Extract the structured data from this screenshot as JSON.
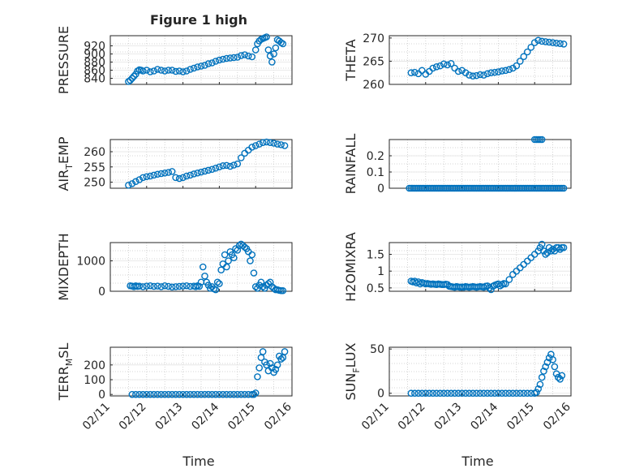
{
  "figure": {
    "marker_color": "#0072BD"
  },
  "chart_data": [
    {
      "type": "scatter",
      "title": "Figure 1 high",
      "ylabel": "PRESSURE",
      "xlim": [
        0,
        5
      ],
      "ylim": [
        825,
        945
      ],
      "yticks": [
        840,
        860,
        880,
        900,
        920
      ],
      "ytick_labels": [
        "840",
        "860",
        "880",
        "900",
        "920"
      ],
      "x": [
        0.5,
        0.55,
        0.6,
        0.65,
        0.7,
        0.75,
        0.8,
        0.85,
        0.9,
        1.0,
        1.1,
        1.2,
        1.3,
        1.4,
        1.5,
        1.6,
        1.7,
        1.8,
        1.9,
        2.0,
        2.1,
        2.2,
        2.3,
        2.4,
        2.5,
        2.6,
        2.7,
        2.8,
        2.9,
        3.0,
        3.1,
        3.2,
        3.3,
        3.4,
        3.5,
        3.6,
        3.7,
        3.8,
        3.9,
        4.0,
        4.05,
        4.1,
        4.15,
        4.2,
        4.25,
        4.3,
        4.35,
        4.4,
        4.45,
        4.5,
        4.55,
        4.6,
        4.65,
        4.7,
        4.75
      ],
      "y": [
        832,
        835,
        840,
        845,
        850,
        858,
        861,
        860,
        858,
        860,
        856,
        858,
        862,
        860,
        858,
        860,
        860,
        857,
        858,
        856,
        858,
        862,
        865,
        868,
        870,
        872,
        876,
        878,
        882,
        885,
        887,
        889,
        890,
        891,
        892,
        896,
        898,
        895,
        893,
        910,
        925,
        932,
        936,
        938,
        940,
        942,
        910,
        895,
        880,
        900,
        915,
        935,
        932,
        928,
        925
      ]
    },
    {
      "type": "scatter",
      "ylabel": "THETA",
      "xlim": [
        0,
        5
      ],
      "ylim": [
        260,
        270.5
      ],
      "yticks": [
        260,
        265,
        270
      ],
      "ytick_labels": [
        "260",
        "265",
        "270"
      ],
      "x": [
        0.6,
        0.7,
        0.8,
        0.9,
        1.0,
        1.1,
        1.2,
        1.3,
        1.4,
        1.5,
        1.6,
        1.7,
        1.8,
        1.9,
        2.0,
        2.1,
        2.2,
        2.3,
        2.4,
        2.5,
        2.6,
        2.7,
        2.8,
        2.9,
        3.0,
        3.1,
        3.2,
        3.3,
        3.4,
        3.5,
        3.6,
        3.7,
        3.8,
        3.9,
        4.0,
        4.1,
        4.2,
        4.3,
        4.4,
        4.5,
        4.6,
        4.7,
        4.8
      ],
      "y": [
        262.5,
        262.6,
        262.3,
        263.0,
        262.2,
        262.8,
        263.5,
        263.8,
        264.0,
        264.4,
        264.2,
        264.5,
        263.5,
        262.8,
        263.0,
        262.5,
        262.0,
        261.8,
        261.9,
        262.1,
        262.0,
        262.3,
        262.5,
        262.6,
        262.7,
        262.9,
        263.0,
        263.2,
        263.5,
        264.0,
        265.0,
        266.0,
        267.0,
        268.0,
        269.0,
        269.5,
        269.3,
        269.2,
        269.1,
        269.0,
        268.9,
        268.8,
        268.7
      ]
    },
    {
      "type": "scatter",
      "ylabel": "AIR_TEMP",
      "ylabel_main": "AIR",
      "ylabel_sub": "T",
      "ylabel_rest": "EMP",
      "xlim": [
        0,
        5
      ],
      "ylim": [
        248,
        264
      ],
      "yticks": [
        250,
        255,
        260
      ],
      "ytick_labels": [
        "250",
        "255",
        "260"
      ],
      "x": [
        0.5,
        0.6,
        0.7,
        0.8,
        0.9,
        1.0,
        1.1,
        1.2,
        1.3,
        1.4,
        1.5,
        1.6,
        1.7,
        1.8,
        1.9,
        2.0,
        2.1,
        2.2,
        2.3,
        2.4,
        2.5,
        2.6,
        2.7,
        2.8,
        2.9,
        3.0,
        3.1,
        3.2,
        3.3,
        3.4,
        3.5,
        3.6,
        3.7,
        3.8,
        3.9,
        4.0,
        4.1,
        4.2,
        4.3,
        4.4,
        4.5,
        4.6,
        4.7,
        4.8
      ],
      "y": [
        249.0,
        249.5,
        250.2,
        250.8,
        251.5,
        251.8,
        252.0,
        252.3,
        252.6,
        252.8,
        253.0,
        253.2,
        253.5,
        251.5,
        251.2,
        251.5,
        252.0,
        252.3,
        252.7,
        253.0,
        253.3,
        253.6,
        253.9,
        254.2,
        254.6,
        255.0,
        255.4,
        255.5,
        255.2,
        255.6,
        256.0,
        258.0,
        259.5,
        260.5,
        261.5,
        262.0,
        262.5,
        263.0,
        263.2,
        263.0,
        262.8,
        262.5,
        262.3,
        262.0
      ]
    },
    {
      "type": "scatter",
      "ylabel": "RAINFALL",
      "xlim": [
        0,
        5
      ],
      "ylim": [
        0,
        0.3
      ],
      "yticks": [
        0,
        0.1,
        0.2
      ],
      "ytick_labels": [
        "0",
        "0.1",
        "0.2"
      ],
      "x": [
        0.55,
        0.6,
        0.65,
        0.7,
        0.75,
        0.8,
        0.85,
        0.9,
        0.95,
        1.0,
        1.05,
        1.1,
        1.15,
        1.2,
        1.25,
        1.3,
        1.35,
        1.4,
        1.45,
        1.5,
        1.55,
        1.6,
        1.65,
        1.7,
        1.75,
        1.8,
        1.85,
        1.9,
        1.95,
        2.0,
        2.05,
        2.1,
        2.15,
        2.2,
        2.25,
        2.3,
        2.35,
        2.4,
        2.45,
        2.5,
        2.55,
        2.6,
        2.65,
        2.7,
        2.75,
        2.8,
        2.85,
        2.9,
        2.95,
        3.0,
        3.05,
        3.1,
        3.15,
        3.2,
        3.25,
        3.3,
        3.35,
        3.4,
        3.45,
        3.5,
        3.55,
        3.6,
        3.65,
        3.7,
        3.75,
        3.8,
        3.85,
        3.9,
        3.95,
        4.0,
        4.05,
        4.1,
        4.15,
        4.2,
        4.25,
        4.3,
        4.35,
        4.4,
        4.45,
        4.5,
        4.55,
        4.6,
        4.65,
        4.7,
        4.75,
        4.8,
        4.0,
        4.05,
        4.1,
        4.15,
        4.2
      ],
      "y": [
        0,
        0,
        0,
        0,
        0,
        0,
        0,
        0,
        0,
        0,
        0,
        0,
        0,
        0,
        0,
        0,
        0,
        0,
        0,
        0,
        0,
        0,
        0,
        0,
        0,
        0,
        0,
        0,
        0,
        0,
        0,
        0,
        0,
        0,
        0,
        0,
        0,
        0,
        0,
        0,
        0,
        0,
        0,
        0,
        0,
        0,
        0,
        0,
        0,
        0,
        0,
        0,
        0,
        0,
        0,
        0,
        0,
        0,
        0,
        0,
        0,
        0,
        0,
        0,
        0,
        0,
        0,
        0,
        0,
        0,
        0,
        0,
        0,
        0,
        0,
        0,
        0,
        0,
        0,
        0,
        0,
        0,
        0,
        0,
        0,
        0,
        0.3,
        0.3,
        0.3,
        0.3,
        0.3
      ]
    },
    {
      "type": "scatter",
      "ylabel": "MIXDEPTH",
      "xlim": [
        0,
        5
      ],
      "ylim": [
        0,
        1600
      ],
      "yticks": [
        0,
        1000
      ],
      "ytick_labels": [
        "0",
        "1000"
      ],
      "x": [
        0.55,
        0.6,
        0.65,
        0.7,
        0.75,
        0.8,
        0.9,
        1.0,
        1.1,
        1.2,
        1.3,
        1.4,
        1.5,
        1.6,
        1.7,
        1.8,
        1.9,
        2.0,
        2.1,
        2.2,
        2.3,
        2.35,
        2.4,
        2.45,
        2.5,
        2.55,
        2.6,
        2.65,
        2.7,
        2.75,
        2.8,
        2.85,
        2.9,
        2.95,
        3.0,
        3.05,
        3.1,
        3.15,
        3.2,
        3.25,
        3.3,
        3.35,
        3.4,
        3.45,
        3.5,
        3.55,
        3.6,
        3.65,
        3.7,
        3.75,
        3.8,
        3.85,
        3.9,
        3.95,
        4.0,
        4.05,
        4.1,
        4.15,
        4.2,
        4.25,
        4.3,
        4.35,
        4.4,
        4.45,
        4.5,
        4.55,
        4.6,
        4.65,
        4.7,
        4.75
      ],
      "y": [
        180,
        170,
        150,
        180,
        160,
        170,
        150,
        170,
        180,
        160,
        170,
        150,
        180,
        160,
        140,
        150,
        160,
        170,
        180,
        160,
        170,
        150,
        180,
        160,
        300,
        800,
        500,
        300,
        200,
        100,
        150,
        80,
        50,
        300,
        250,
        700,
        900,
        1200,
        800,
        1000,
        1300,
        1200,
        1100,
        1400,
        1350,
        1500,
        1550,
        1500,
        1450,
        1400,
        1300,
        1000,
        1200,
        600,
        150,
        100,
        200,
        300,
        150,
        100,
        200,
        250,
        300,
        150,
        100,
        50,
        50,
        30,
        20,
        20
      ]
    },
    {
      "type": "scatter",
      "ylabel": "H2OMIXRA",
      "xlim": [
        0,
        5
      ],
      "ylim": [
        0.4,
        1.85
      ],
      "yticks": [
        0.5,
        1,
        1.5
      ],
      "ytick_labels": [
        "0.5",
        "1",
        "1.5"
      ],
      "x": [
        0.6,
        0.65,
        0.7,
        0.75,
        0.8,
        0.85,
        0.9,
        0.95,
        1.0,
        1.05,
        1.1,
        1.15,
        1.2,
        1.25,
        1.3,
        1.35,
        1.4,
        1.45,
        1.5,
        1.55,
        1.6,
        1.65,
        1.7,
        1.75,
        1.8,
        1.85,
        1.9,
        1.95,
        2.0,
        2.05,
        2.1,
        2.15,
        2.2,
        2.25,
        2.3,
        2.35,
        2.4,
        2.45,
        2.5,
        2.55,
        2.6,
        2.65,
        2.7,
        2.75,
        2.8,
        2.85,
        2.9,
        2.95,
        3.0,
        3.05,
        3.1,
        3.15,
        3.2,
        3.3,
        3.4,
        3.5,
        3.6,
        3.7,
        3.8,
        3.9,
        4.0,
        4.1,
        4.15,
        4.2,
        4.25,
        4.3,
        4.35,
        4.4,
        4.45,
        4.5,
        4.55,
        4.6,
        4.65,
        4.7,
        4.75,
        4.8
      ],
      "y": [
        0.7,
        0.68,
        0.7,
        0.65,
        0.68,
        0.62,
        0.66,
        0.64,
        0.62,
        0.63,
        0.62,
        0.61,
        0.62,
        0.61,
        0.6,
        0.62,
        0.61,
        0.6,
        0.6,
        0.61,
        0.6,
        0.55,
        0.54,
        0.53,
        0.52,
        0.54,
        0.53,
        0.52,
        0.53,
        0.52,
        0.54,
        0.53,
        0.52,
        0.53,
        0.54,
        0.53,
        0.52,
        0.53,
        0.54,
        0.53,
        0.52,
        0.55,
        0.56,
        0.5,
        0.45,
        0.55,
        0.58,
        0.6,
        0.62,
        0.56,
        0.6,
        0.63,
        0.62,
        0.75,
        0.9,
        1.0,
        1.1,
        1.2,
        1.3,
        1.4,
        1.5,
        1.6,
        1.7,
        1.8,
        1.6,
        1.5,
        1.55,
        1.7,
        1.6,
        1.65,
        1.6,
        1.7,
        1.7,
        1.65,
        1.7,
        1.7
      ]
    },
    {
      "type": "scatter",
      "ylabel": "TERR_MSL",
      "ylabel_main": "TERR",
      "ylabel_sub": "M",
      "ylabel_rest": "SL",
      "xlim": [
        0,
        5
      ],
      "ylim": [
        -10,
        320
      ],
      "yticks": [
        0,
        100,
        200
      ],
      "ytick_labels": [
        "0",
        "100",
        "200"
      ],
      "x_labels": [
        "02/11",
        "02/12",
        "02/13",
        "02/14",
        "02/15",
        "02/16"
      ],
      "xlabel": "Time",
      "x": [
        0.6,
        0.7,
        0.8,
        0.9,
        1.0,
        1.1,
        1.2,
        1.3,
        1.4,
        1.5,
        1.6,
        1.7,
        1.8,
        1.9,
        2.0,
        2.1,
        2.2,
        2.3,
        2.4,
        2.5,
        2.6,
        2.7,
        2.8,
        2.9,
        3.0,
        3.1,
        3.2,
        3.3,
        3.4,
        3.5,
        3.6,
        3.7,
        3.8,
        3.9,
        3.95,
        4.0,
        4.05,
        4.1,
        4.15,
        4.2,
        4.25,
        4.3,
        4.35,
        4.4,
        4.45,
        4.5,
        4.55,
        4.6,
        4.65,
        4.7,
        4.75,
        4.8
      ],
      "y": [
        0,
        0,
        0,
        0,
        0,
        0,
        0,
        0,
        0,
        0,
        0,
        0,
        0,
        0,
        0,
        0,
        0,
        0,
        0,
        0,
        0,
        0,
        0,
        0,
        0,
        0,
        0,
        0,
        0,
        0,
        0,
        0,
        0,
        0,
        0,
        10,
        120,
        180,
        250,
        290,
        220,
        200,
        160,
        210,
        180,
        150,
        170,
        200,
        260,
        240,
        250,
        290
      ]
    },
    {
      "type": "scatter",
      "ylabel": "SUN_FLUX",
      "ylabel_main": "SUN",
      "ylabel_sub": "F",
      "ylabel_rest": "LUX",
      "xlim": [
        0,
        5
      ],
      "ylim": [
        -3,
        52
      ],
      "yticks": [
        0,
        50
      ],
      "ytick_labels": [
        "0",
        "50"
      ],
      "x_labels": [
        "02/11",
        "02/12",
        "02/13",
        "02/14",
        "02/15",
        "02/16"
      ],
      "xlabel": "Time",
      "x": [
        0.6,
        0.7,
        0.8,
        0.9,
        1.0,
        1.1,
        1.2,
        1.3,
        1.4,
        1.5,
        1.6,
        1.7,
        1.8,
        1.9,
        2.0,
        2.1,
        2.2,
        2.3,
        2.4,
        2.5,
        2.6,
        2.7,
        2.8,
        2.9,
        3.0,
        3.1,
        3.2,
        3.3,
        3.4,
        3.5,
        3.6,
        3.7,
        3.8,
        3.9,
        4.0,
        4.05,
        4.1,
        4.15,
        4.2,
        4.25,
        4.3,
        4.35,
        4.4,
        4.45,
        4.5,
        4.55,
        4.6,
        4.65,
        4.7,
        4.75
      ],
      "y": [
        0,
        0,
        0,
        0,
        0,
        0,
        0,
        0,
        0,
        0,
        0,
        0,
        0,
        0,
        0,
        0,
        0,
        0,
        0,
        0,
        0,
        0,
        0,
        0,
        0,
        0,
        0,
        0,
        0,
        0,
        0,
        0,
        0,
        0,
        0,
        1,
        5,
        10,
        18,
        25,
        30,
        35,
        40,
        44,
        38,
        30,
        22,
        18,
        16,
        20
      ]
    }
  ]
}
